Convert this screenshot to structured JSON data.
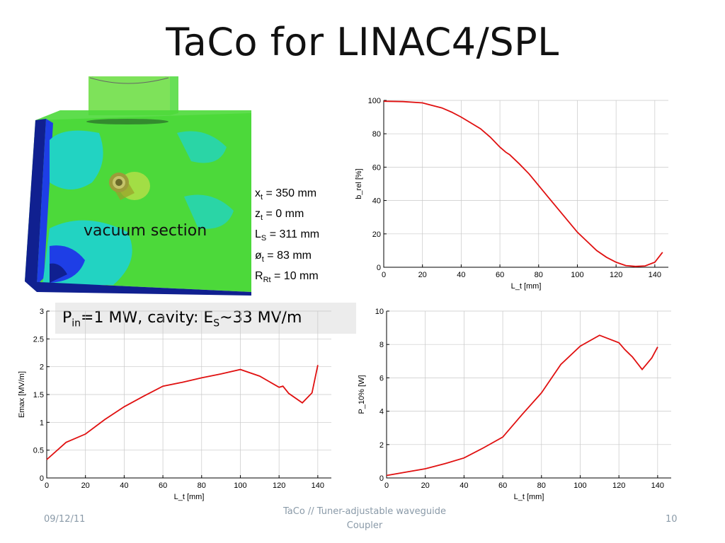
{
  "title": "TaCo for LINAC4/SPL",
  "image": {
    "label": "vacuum section",
    "colors": {
      "green": "#4cd93a",
      "light_green": "#7ee25a",
      "cyan": "#22d3c2",
      "blue": "#1e3ee6",
      "dark_blue": "#102090"
    }
  },
  "params": [
    {
      "sym": "x",
      "sub": "t",
      "value": " = 350 mm"
    },
    {
      "sym": "z",
      "sub": "t",
      "value": " = 0 mm"
    },
    {
      "sym": "L",
      "sub": "S",
      "value": " = 311 mm"
    },
    {
      "sym": "ø",
      "sub": "t",
      "value": " = 83 mm"
    },
    {
      "sym": "R",
      "sub": "Rt",
      "value": " = 10 mm"
    }
  ],
  "callout": {
    "p": "P",
    "p_sub": "in",
    "mid": "=1 MW, cavity: E",
    "e_sub": "S",
    "end": "~33 MV/m"
  },
  "chart_data": [
    {
      "type": "line",
      "xlabel": "L_t [mm]",
      "ylabel": "b_rel [%]",
      "xlim": [
        0,
        147
      ],
      "ylim": [
        0,
        100
      ],
      "xticks": [
        0,
        20,
        40,
        60,
        80,
        100,
        120,
        140
      ],
      "yticks": [
        0,
        20,
        40,
        60,
        80,
        100
      ],
      "ytick_labels": [
        "0",
        "20",
        "40",
        "60",
        "80",
        "100"
      ],
      "grid": true,
      "color": "#e01010",
      "series": [
        {
          "x": [
            0,
            10,
            20,
            25,
            30,
            35,
            40,
            45,
            50,
            55,
            60,
            63,
            65,
            70,
            75,
            80,
            85,
            90,
            95,
            100,
            105,
            110,
            115,
            120,
            125,
            130,
            135,
            140,
            144
          ],
          "y": [
            99.5,
            99.3,
            98.5,
            97,
            95.5,
            93,
            90,
            86.5,
            83,
            78,
            72,
            69,
            67.5,
            62,
            56,
            49,
            42,
            35,
            28,
            21,
            15.5,
            10,
            6,
            3,
            1,
            0.5,
            0.8,
            3,
            9
          ]
        }
      ]
    },
    {
      "type": "line",
      "xlabel": "L_t [mm]",
      "ylabel": "Emax [MV/m]",
      "xlim": [
        0,
        147
      ],
      "ylim": [
        0,
        3
      ],
      "xticks": [
        0,
        20,
        40,
        60,
        80,
        100,
        120,
        140
      ],
      "yticks": [
        0,
        0.5,
        1,
        1.5,
        2,
        2.5,
        3
      ],
      "ytick_labels": [
        "0",
        "0.5",
        "1",
        "1.5",
        "2",
        "2.5",
        "3"
      ],
      "grid": true,
      "color": "#e01010",
      "series": [
        {
          "x": [
            0,
            10,
            20,
            30,
            40,
            50,
            60,
            70,
            80,
            90,
            100,
            110,
            120,
            122,
            125,
            132,
            137,
            140
          ],
          "y": [
            0.33,
            0.64,
            0.79,
            1.05,
            1.28,
            1.47,
            1.65,
            1.72,
            1.8,
            1.87,
            1.95,
            1.83,
            1.63,
            1.65,
            1.52,
            1.35,
            1.53,
            2.03
          ]
        }
      ]
    },
    {
      "type": "line",
      "xlabel": "L_t [mm]",
      "ylabel": "P_10% [W]",
      "xlim": [
        0,
        147
      ],
      "ylim": [
        0,
        10
      ],
      "xticks": [
        0,
        20,
        40,
        60,
        80,
        100,
        120,
        140
      ],
      "yticks": [
        0,
        2,
        4,
        6,
        8,
        10
      ],
      "ytick_labels": [
        "0",
        "2",
        "4",
        "6",
        "8",
        "10"
      ],
      "grid": true,
      "color": "#e01010",
      "series": [
        {
          "x": [
            0,
            10,
            20,
            30,
            40,
            50,
            60,
            70,
            80,
            90,
            100,
            110,
            120,
            123,
            127,
            132,
            137,
            140
          ],
          "y": [
            0.15,
            0.35,
            0.55,
            0.85,
            1.2,
            1.8,
            2.45,
            3.8,
            5.1,
            6.8,
            7.9,
            8.55,
            8.1,
            7.7,
            7.25,
            6.5,
            7.2,
            7.85
          ]
        }
      ]
    }
  ],
  "footer": {
    "date": "09/12/11",
    "center_line1": "TaCo // Tuner-adjustable waveguide",
    "center_line2": "Coupler",
    "page": "10"
  }
}
